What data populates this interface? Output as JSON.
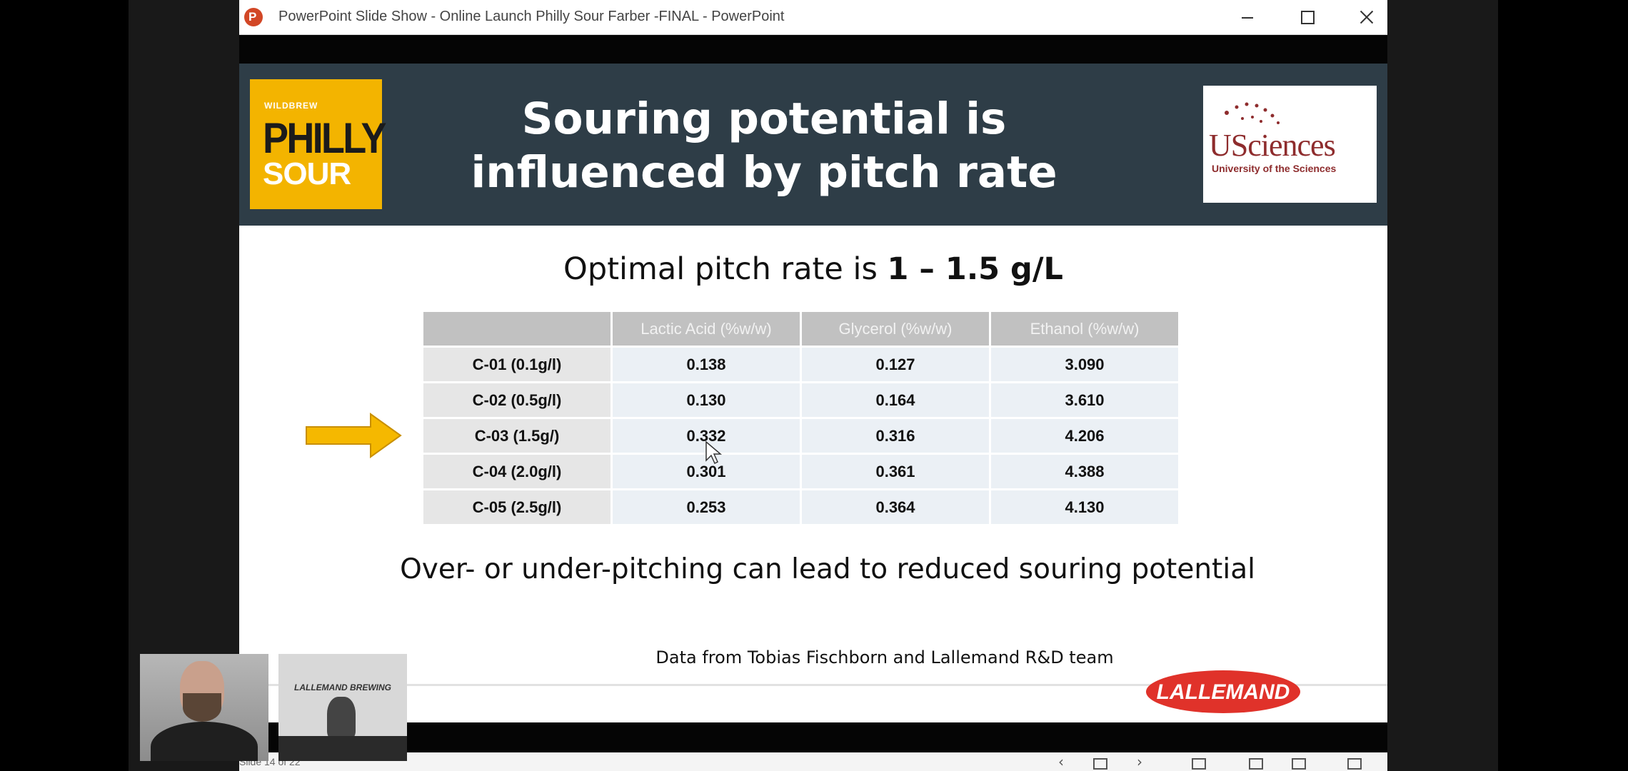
{
  "window": {
    "app_icon_letter": "P",
    "title": "PowerPoint Slide Show  -  Online Launch Philly Sour Farber -FINAL - PowerPoint"
  },
  "slide": {
    "logo_left": {
      "small": "WILDBREW",
      "big": "PHILLY",
      "sub": "SOUR"
    },
    "title": "Souring potential is influenced by pitch rate",
    "logo_right": {
      "word": "USciences",
      "tagline": "University of the Sciences"
    },
    "subtitle_prefix": "Optimal pitch rate is ",
    "subtitle_bold": "1 – 1.5 g/L",
    "table": {
      "headers": [
        "",
        "Lactic Acid (%w/w)",
        "Glycerol (%w/w)",
        "Ethanol (%w/w)"
      ],
      "rows": [
        {
          "label": "C-01 (0.1g/l)",
          "values": [
            "0.138",
            "0.127",
            "3.090"
          ]
        },
        {
          "label": "C-02 (0.5g/l)",
          "values": [
            "0.130",
            "0.164",
            "3.610"
          ]
        },
        {
          "label": "C-03 (1.5g/)",
          "values": [
            "0.332",
            "0.316",
            "4.206"
          ]
        },
        {
          "label": "C-04 (2.0g/l)",
          "values": [
            "0.301",
            "0.361",
            "4.388"
          ]
        },
        {
          "label": "C-05 (2.5g/l)",
          "values": [
            "0.253",
            "0.364",
            "4.130"
          ]
        }
      ]
    },
    "note": "Over- or under-pitching can lead to reduced souring potential",
    "credit": "Data from Tobias Fischborn and Lallemand R&D team",
    "footer_logo": "LALLEMAND"
  },
  "statusbar": {
    "slide_number": "Slide 14 of 22",
    "icons": [
      "chevron-left-icon",
      "slide-sorter-icon",
      "chevron-right-icon",
      "normal-view-icon",
      "grid-view-icon",
      "reading-view-icon",
      "slideshow-icon"
    ]
  },
  "webcams": {
    "cam2_banner": "LALLEMAND BREWING"
  },
  "colors": {
    "header_bg": "#2e3d47",
    "philly_yellow": "#f3b400",
    "usciences_red": "#8e2c2d",
    "lallemand_red": "#e0322a",
    "arrow": "#f5b800"
  }
}
